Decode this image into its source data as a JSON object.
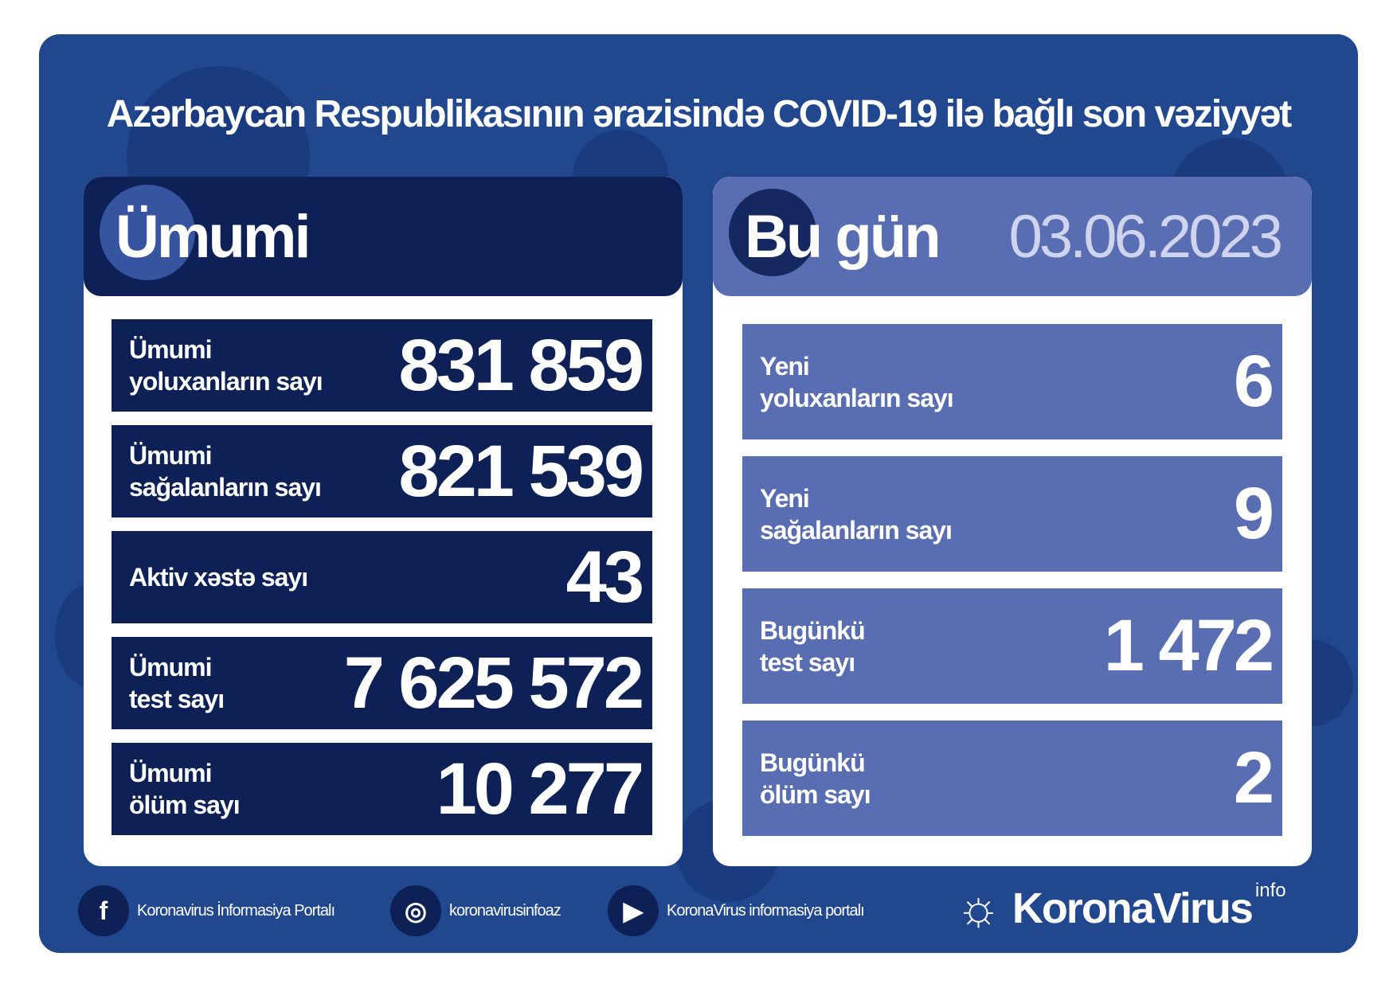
{
  "title": "Azərbaycan Respublikasının ərazisində COVID-19 ilə bağlı son vəziyyət",
  "colors": {
    "background": "#21478f",
    "navy": "#0d2157",
    "today": "#596db3"
  },
  "total": {
    "header": "Ümumi",
    "rows": [
      {
        "label1": "Ümumi",
        "label2": "yoluxanların sayı",
        "value": "831 859"
      },
      {
        "label1": "Ümumi",
        "label2": "sağalanların sayı",
        "value": "821 539"
      },
      {
        "label1": "Aktiv xəstə sayı",
        "label2": "",
        "value": "43"
      },
      {
        "label1": "Ümumi",
        "label2": "test sayı",
        "value": "7 625 572"
      },
      {
        "label1": "Ümumi",
        "label2": "ölüm sayı",
        "value": "10 277"
      }
    ]
  },
  "today": {
    "header": "Bu gün",
    "date": "03.06.2023",
    "rows": [
      {
        "label1": "Yeni",
        "label2": "yoluxanların sayı",
        "value": "6"
      },
      {
        "label1": "Yeni",
        "label2": "sağalanların sayı",
        "value": "9"
      },
      {
        "label1": "Bugünkü",
        "label2": "test sayı",
        "value": "1 472"
      },
      {
        "label1": "Bugünkü",
        "label2": "ölüm sayı",
        "value": "2"
      }
    ]
  },
  "footer": {
    "facebook": "Koronavirus İnformasiya Portalı",
    "instagram": "koronavirusinfoaz",
    "youtube": "KoronaVirus informasiya portalı",
    "logo": "KoronaVirus",
    "logo_sup": "info"
  }
}
